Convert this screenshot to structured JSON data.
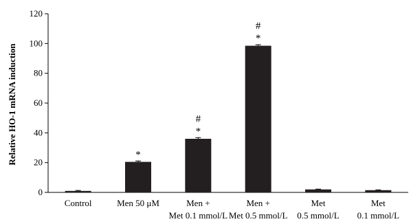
{
  "chart_data": {
    "type": "bar",
    "title": "",
    "xlabel": "",
    "ylabel": "Relative HO-1 mRNA induction",
    "ylim": [
      0,
      120
    ],
    "yticks": [
      0,
      20,
      40,
      60,
      80,
      100,
      120
    ],
    "grid": false,
    "categories": [
      [
        "Control"
      ],
      [
        "Men 50 μM"
      ],
      [
        "Men +",
        "Met 0.1 mmol/L"
      ],
      [
        "Men +",
        "Met 0.5 mmol/L"
      ],
      [
        "Met",
        "0.5 mmol/L"
      ],
      [
        "Met",
        "0.1 mmol/L"
      ]
    ],
    "values": [
      1,
      20.5,
      36,
      98.5,
      2,
      1.5
    ],
    "errors": [
      0.3,
      0.6,
      0.8,
      0.7,
      0.2,
      0.2
    ],
    "annotations": [
      [],
      [
        "*"
      ],
      [
        "#",
        "*"
      ],
      [
        "#",
        "*"
      ],
      [],
      []
    ],
    "bar_color": "#231f20"
  }
}
